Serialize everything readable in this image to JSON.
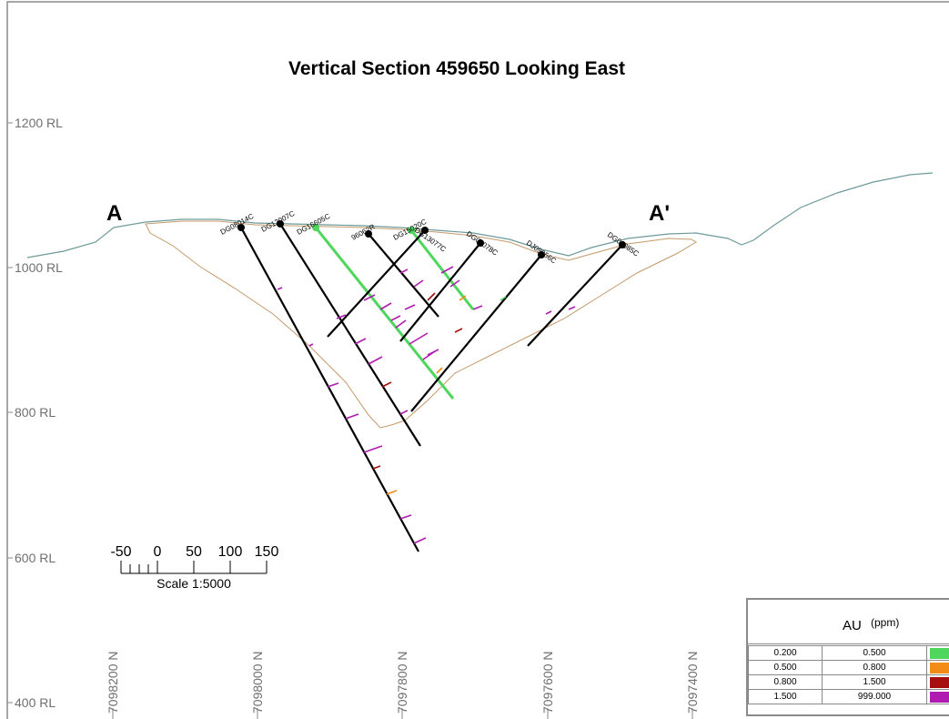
{
  "title": "Vertical Section 459650 Looking East",
  "section_start_label": "A",
  "section_end_label": "A'",
  "elevation_labels": [
    "1200 RL",
    "1000 RL",
    "800 RL",
    "600 RL",
    "400 RL"
  ],
  "northing_labels": [
    "7098200 N",
    "7098000 N",
    "7097800 N",
    "7097600 N",
    "7097400 N"
  ],
  "drillholes": [
    {
      "name": "DG08014C",
      "color": "#000000"
    },
    {
      "name": "DG12007C",
      "color": "#000000"
    },
    {
      "name": "DG16605C",
      "color": "#4fd65c"
    },
    {
      "name": "96062R",
      "color": "#000000"
    },
    {
      "name": "DG15020C",
      "color": "#4fd65c"
    },
    {
      "name": "DG13077C",
      "color": "#000000"
    },
    {
      "name": "DG09078C",
      "color": "#000000"
    },
    {
      "name": "DJ09056C",
      "color": "#000000"
    },
    {
      "name": "DG06085C",
      "color": "#000000"
    }
  ],
  "scale_bar": {
    "tick_labels": [
      "-50",
      "0",
      "50",
      "100",
      "150"
    ],
    "caption": "Scale 1:5000"
  },
  "legend": {
    "field": "AU",
    "unit": "(ppm)",
    "ranges": [
      {
        "from": "0.200",
        "to": "0.500",
        "color": "#4fd65c"
      },
      {
        "from": "0.500",
        "to": "0.800",
        "color": "#f28c17"
      },
      {
        "from": "0.800",
        "to": "1.500",
        "color": "#a50f0f"
      },
      {
        "from": "1.500",
        "to": "999.000",
        "color": "#b01cb0"
      }
    ]
  },
  "colors": {
    "topography": "#6f9a9a",
    "pit_outline": "#c49a6a",
    "frame": "#8a8a8a",
    "axis_text": "#6f6f6f"
  }
}
